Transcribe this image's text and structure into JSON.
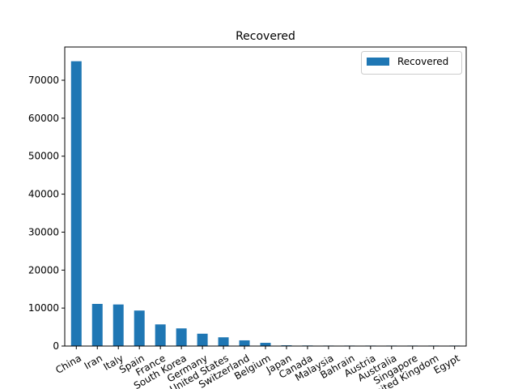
{
  "chart_data": {
    "type": "bar",
    "title": "Recovered",
    "xlabel": "",
    "ylabel": "",
    "categories": [
      "China",
      "Iran",
      "Italy",
      "Spain",
      "France",
      "South Korea",
      "Germany",
      "United States",
      "Switzerland",
      "Belgium",
      "Japan",
      "Canada",
      "Malaysia",
      "Bahrain",
      "Austria",
      "Australia",
      "Singapore",
      "United Kingdom",
      "Egypt"
    ],
    "series": [
      {
        "name": "Recovered",
        "values": [
          75000,
          11100,
          10950,
          9350,
          5700,
          4650,
          3250,
          2300,
          1500,
          850,
          200,
          150,
          120,
          110,
          100,
          90,
          80,
          20,
          20
        ],
        "color": "#1f77b4"
      }
    ],
    "ylim": [
      0,
      78750
    ],
    "yticks": [
      0,
      10000,
      20000,
      30000,
      40000,
      50000,
      60000,
      70000
    ],
    "legend": {
      "position": "top-right"
    },
    "grid": false
  }
}
